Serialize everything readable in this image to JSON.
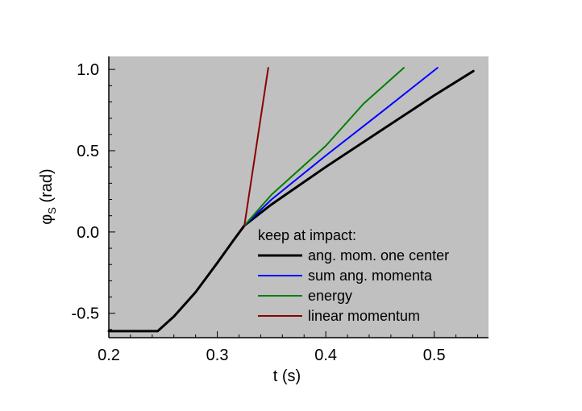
{
  "chart_data": {
    "type": "line",
    "xlabel": "t (s)",
    "ylabel_main": "φ",
    "ylabel_sub": "S",
    "ylabel_unit": " (rad)",
    "xlim": [
      0.2,
      0.55
    ],
    "ylim": [
      -0.65,
      1.08
    ],
    "xticks": [
      0.2,
      0.3,
      0.4,
      0.5
    ],
    "xtick_labels": [
      "0.2",
      "0.3",
      "0.4",
      "0.5"
    ],
    "yticks": [
      -0.5,
      0.0,
      0.5,
      1.0
    ],
    "ytick_labels": [
      "-0.5",
      "0.0",
      "0.5",
      "1.0"
    ],
    "grid": false,
    "plot_background": "#c0c0c0",
    "legend": {
      "title": "keep at impact:",
      "placement": "bottom-right",
      "entries": [
        "ang. mom.  one center",
        "sum ang. momenta",
        "energy",
        "linear momentum"
      ]
    },
    "series": [
      {
        "name": "ang. mom.  one center",
        "color": "#000000",
        "points": [
          [
            0.2,
            -0.61
          ],
          [
            0.245,
            -0.61
          ],
          [
            0.26,
            -0.52
          ],
          [
            0.28,
            -0.37
          ],
          [
            0.3,
            -0.19
          ],
          [
            0.315,
            -0.05
          ],
          [
            0.325,
            0.04
          ],
          [
            0.35,
            0.17
          ],
          [
            0.4,
            0.4
          ],
          [
            0.45,
            0.62
          ],
          [
            0.5,
            0.84
          ],
          [
            0.536,
            0.99
          ]
        ]
      },
      {
        "name": "sum ang. momenta",
        "color": "#0000ff",
        "points": [
          [
            0.325,
            0.04
          ],
          [
            0.35,
            0.2
          ],
          [
            0.4,
            0.47
          ],
          [
            0.45,
            0.73
          ],
          [
            0.503,
            1.01
          ]
        ]
      },
      {
        "name": "energy",
        "color": "#007f00",
        "points": [
          [
            0.325,
            0.04
          ],
          [
            0.35,
            0.23
          ],
          [
            0.4,
            0.53
          ],
          [
            0.435,
            0.79
          ],
          [
            0.472,
            1.01
          ]
        ]
      },
      {
        "name": "linear momentum",
        "color": "#8b0000",
        "points": [
          [
            0.325,
            0.04
          ],
          [
            0.347,
            1.01
          ]
        ]
      }
    ]
  }
}
